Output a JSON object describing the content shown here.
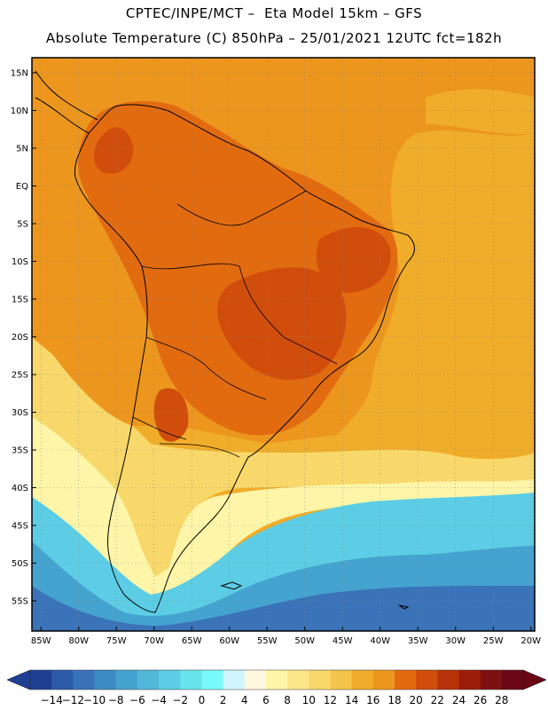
{
  "header": {
    "line1": "CPTEC/INPE/MCT –  Eta Model 15km – GFS",
    "line2": "Absolute Temperature (C) 850hPa – 25/01/2021 12UTC fct=182h"
  },
  "map": {
    "lat_labels": [
      "15N",
      "10N",
      "5N",
      "EQ",
      "5S",
      "10S",
      "15S",
      "20S",
      "25S",
      "30S",
      "35S",
      "40S",
      "45S",
      "50S",
      "55S"
    ],
    "lon_labels": [
      "85W",
      "80W",
      "75W",
      "70W",
      "65W",
      "60W",
      "55W",
      "50W",
      "45W",
      "40W",
      "35W",
      "30W",
      "25W",
      "20W"
    ],
    "lat_values": [
      15,
      10,
      5,
      0,
      -5,
      -10,
      -15,
      -20,
      -25,
      -30,
      -35,
      -40,
      -45,
      -50,
      -55
    ],
    "lon_values": [
      -85,
      -80,
      -75,
      -70,
      -65,
      -60,
      -55,
      -50,
      -45,
      -40,
      -35,
      -30,
      -25,
      -20
    ]
  },
  "colorbar": {
    "labels": [
      "-14",
      "-12",
      "-10",
      "-8",
      "-6",
      "-4",
      "-2",
      "0",
      "2",
      "4",
      "6",
      "8",
      "10",
      "12",
      "14",
      "16",
      "18",
      "20",
      "22",
      "24",
      "26",
      "28"
    ],
    "colors": [
      "#1f3f93",
      "#2a5aa8",
      "#3a73b8",
      "#3d8bc4",
      "#45a3cf",
      "#52b8da",
      "#5ccde4",
      "#6ae4ec",
      "#78fafa",
      "#d2f4fc",
      "#fff8e0",
      "#fef5a8",
      "#fce68a",
      "#f8d86a",
      "#f4c54a",
      "#f0ad2a",
      "#ec961e",
      "#e26b10",
      "#d14d0b",
      "#b8330a",
      "#9a1d0a",
      "#7d1010",
      "#6a0616"
    ]
  },
  "fill_colors": {
    "ocean_warm": "#ec961e",
    "ocean_hot": "#f0ad2a",
    "land_warm": "#e26b10",
    "land_hot": "#d14d0b",
    "yellow": "#f8d86a",
    "pale": "#fef5a8",
    "cyan": "#5ccde4",
    "blue": "#45a3cf",
    "deep_blue": "#3a73b8"
  }
}
